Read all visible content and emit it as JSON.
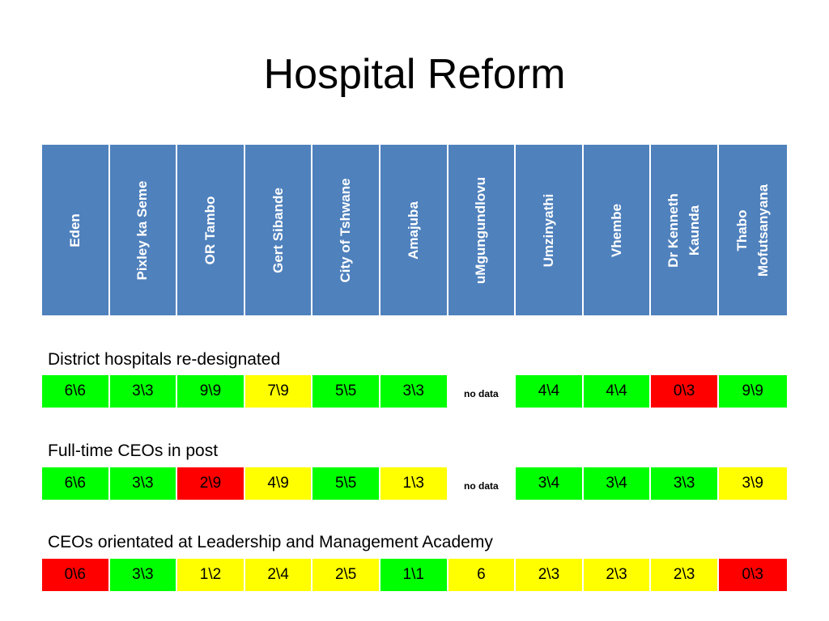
{
  "title": "Hospital Reform",
  "districts": [
    "Eden",
    "Pixley ka Seme",
    "OR Tambo",
    "Gert Sibande",
    "City of Tshwane",
    "Amajuba",
    "uMgungundlovu",
    "Umzinyathi",
    "Vhembe",
    "Dr Kenneth\nKaunda",
    "Thabo\nMofutsanyana"
  ],
  "colors": {
    "header": "#4f81bd",
    "green": "#00ff00",
    "yellow": "#ffff00",
    "red": "#ff0000",
    "none": "#ffffff"
  },
  "sections": [
    {
      "label": "District hospitals re-designated",
      "cells": [
        {
          "value": "6\\6",
          "status": "green"
        },
        {
          "value": "3\\3",
          "status": "green"
        },
        {
          "value": "9\\9",
          "status": "green"
        },
        {
          "value": "7\\9",
          "status": "yellow"
        },
        {
          "value": "5\\5",
          "status": "green"
        },
        {
          "value": "3\\3",
          "status": "green"
        },
        {
          "value": "no data",
          "status": "none"
        },
        {
          "value": "4\\4",
          "status": "green"
        },
        {
          "value": "4\\4",
          "status": "green"
        },
        {
          "value": "0\\3",
          "status": "red"
        },
        {
          "value": "9\\9",
          "status": "green"
        }
      ]
    },
    {
      "label": "Full-time CEOs in post",
      "cells": [
        {
          "value": "6\\6",
          "status": "green"
        },
        {
          "value": "3\\3",
          "status": "green"
        },
        {
          "value": "2\\9",
          "status": "red"
        },
        {
          "value": "4\\9",
          "status": "yellow"
        },
        {
          "value": "5\\5",
          "status": "green"
        },
        {
          "value": "1\\3",
          "status": "yellow"
        },
        {
          "value": "no data",
          "status": "none"
        },
        {
          "value": "3\\4",
          "status": "green"
        },
        {
          "value": "3\\4",
          "status": "green"
        },
        {
          "value": "3\\3",
          "status": "green"
        },
        {
          "value": "3\\9",
          "status": "yellow"
        }
      ]
    },
    {
      "label": "CEOs orientated at  Leadership and Management  Academy",
      "cells": [
        {
          "value": "0\\6",
          "status": "red"
        },
        {
          "value": "3\\3",
          "status": "green"
        },
        {
          "value": "1\\2",
          "status": "yellow"
        },
        {
          "value": "2\\4",
          "status": "yellow"
        },
        {
          "value": "2\\5",
          "status": "yellow"
        },
        {
          "value": "1\\1",
          "status": "green"
        },
        {
          "value": "6",
          "status": "yellow"
        },
        {
          "value": "2\\3",
          "status": "yellow"
        },
        {
          "value": "2\\3",
          "status": "yellow"
        },
        {
          "value": "2\\3",
          "status": "yellow"
        },
        {
          "value": "0\\3",
          "status": "red"
        }
      ]
    }
  ]
}
